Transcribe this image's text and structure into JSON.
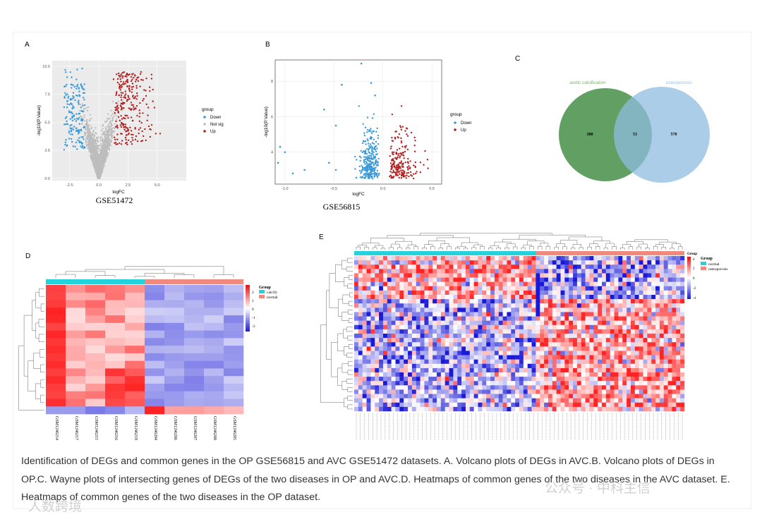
{
  "panels": {
    "a": {
      "letter": "A",
      "dataset": "GSE51472",
      "xlabel": "logFC",
      "ylabel": "-log10(P.Value)",
      "legend_title": "group",
      "legend": [
        "Down",
        "Not sig",
        "Up"
      ],
      "xticks": [
        "-2.5",
        "0.0",
        "2.5",
        "5.0"
      ],
      "yticks": [
        "0.0",
        "2.5",
        "5.0",
        "7.5",
        "10.0"
      ]
    },
    "b": {
      "letter": "B",
      "dataset": "GSE56815",
      "xlabel": "logFC",
      "ylabel": "-log10(P.Value)",
      "legend_title": "group",
      "legend": [
        "Down",
        "Up"
      ],
      "xticks": [
        "-1.0",
        "-0.5",
        "0.0",
        "0.5"
      ],
      "yticks": [
        "4",
        "6",
        "8"
      ]
    },
    "c": {
      "letter": "C",
      "left_label": "aortic calcification",
      "right_label": "osteoporosis",
      "left_only": "380",
      "shared": "53",
      "right_only": "570"
    },
    "d": {
      "letter": "D",
      "legend_title": "Group",
      "groups": [
        "calcify",
        "normal"
      ],
      "scale": [
        "2",
        "1",
        "0",
        "-1",
        "-2"
      ],
      "samples": [
        "GSM1246214",
        "GSM1246217",
        "GSM1246215",
        "GSM1246216",
        "GSM1246218",
        "GSM1246204",
        "GSM1246206",
        "GSM1246207",
        "GSM1246208",
        "GSM1246205"
      ]
    },
    "e": {
      "letter": "E",
      "legend_title": "Group",
      "groups": [
        "normal",
        "osteoporosis"
      ],
      "scale": [
        "4",
        "2",
        "0",
        "-2",
        "-4"
      ],
      "scale_header": "Group"
    }
  },
  "caption": "Identification of DEGs and common genes in the OP GSE56815 and AVC GSE51472 datasets. A. Volcano plots of DEGs in AVC.B. Volcano plots of DEGs in OP.C. Wayne plots of intersecting genes of DEGs of the two diseases in OP and AVC.D. Heatmaps of common genes of the two diseases in the AVC dataset. E. Heatmaps of common genes of the two diseases in the OP dataset.",
  "watermark_right": "公众号 · 中科主信",
  "watermark_left": "人数跨境",
  "colors": {
    "down": "#3a9ad9",
    "up": "#b22222",
    "notsig": "#bdbdbd",
    "venn_left": "#5a9a5a",
    "venn_right": "#8fbce0",
    "cyan": "#22d3dd",
    "salmon": "#f08a7e"
  },
  "chart_data": [
    {
      "type": "scatter",
      "title": "GSE51472",
      "xlabel": "logFC",
      "ylabel": "-log10(P.Value)",
      "xlim": [
        -4,
        7.5
      ],
      "ylim": [
        -0.2,
        10.5
      ],
      "series": [
        {
          "name": "Down"
        },
        {
          "name": "Not sig"
        },
        {
          "name": "Up"
        }
      ]
    },
    {
      "type": "scatter",
      "title": "GSE56815",
      "xlabel": "logFC",
      "ylabel": "-log10(P.Value)",
      "xlim": [
        -1.1,
        0.6
      ],
      "ylim": [
        2.2,
        9.2
      ],
      "series": [
        {
          "name": "Down"
        },
        {
          "name": "Up"
        }
      ]
    },
    {
      "type": "venn",
      "sets": [
        "aortic calcification",
        "osteoporosis"
      ],
      "values": [
        380,
        53,
        570
      ]
    },
    {
      "type": "heatmap",
      "title": "AVC common genes",
      "columns": 10,
      "rows": 17,
      "scale": [
        -2,
        2
      ]
    },
    {
      "type": "heatmap",
      "title": "OP common genes",
      "columns": 80,
      "rows": 36,
      "scale": [
        -4,
        4
      ]
    }
  ]
}
